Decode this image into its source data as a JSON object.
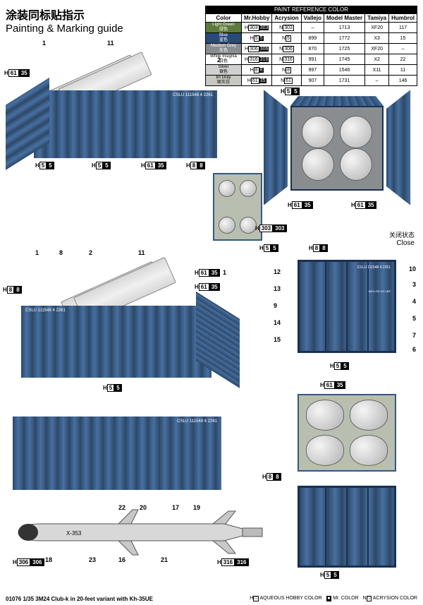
{
  "title_cn": "涂装同标贴指示",
  "title_en": "Painting & Marking guide",
  "paint_table": {
    "header": "PAINT  REFERENCE COLOR",
    "columns": [
      "Color",
      "Mr.Hobby",
      "Acrysion",
      "Vallejo",
      "Model Master",
      "Tamiya",
      "Humbrol"
    ],
    "rows": [
      {
        "name_en": "Light Green",
        "name_cn": "绿色",
        "bg": "#5e7a3c",
        "txt": "#fff",
        "h": "303",
        "hc": "303",
        "n": "303",
        "v": "–",
        "mm": "1713",
        "t": "XF20",
        "hb": "117"
      },
      {
        "name_en": "Blue",
        "name_cn": "蓝色",
        "bg": "#2a4a7a",
        "txt": "#fff",
        "h": "5",
        "hc": "5",
        "n": "5",
        "v": "899",
        "mm": "1772",
        "t": "X3",
        "hb": "15"
      },
      {
        "name_en": "Medium Grey",
        "name_cn": "灰色",
        "bg": "#8a8d8f",
        "txt": "#fff",
        "h": "306",
        "hc": "306",
        "n": "306",
        "v": "870",
        "mm": "1725",
        "t": "XF20",
        "hb": "–"
      },
      {
        "name_en": "White Insignia",
        "name_cn": "白色",
        "bg": "#ffffff",
        "txt": "#000",
        "h": "316",
        "hc": "316",
        "n": "316",
        "v": "991",
        "mm": "1745",
        "t": "X2",
        "hb": "22"
      },
      {
        "name_en": "Silver",
        "name_cn": "银色",
        "bg": "#d0d0d0",
        "txt": "#000",
        "h": "8",
        "hc": "8",
        "n": "8",
        "v": "997",
        "mm": "1546",
        "t": "X11",
        "hb": "11"
      },
      {
        "name_en": "tin Gray",
        "name_cn": "联灰白",
        "bg": "#c8c8c0",
        "txt": "#000",
        "h": "61",
        "hc": "35",
        "n": "61",
        "v": "907",
        "mm": "1731",
        "t": "–",
        "hb": "146"
      }
    ]
  },
  "codes": {
    "h61_35": {
      "prefix": "H",
      "p": "61",
      "b": "35"
    },
    "h5_5": {
      "prefix": "H",
      "p": "5",
      "b": "5"
    },
    "h8_8": {
      "prefix": "H",
      "p": "8",
      "b": "8"
    },
    "h303_303": {
      "prefix": "H",
      "p": "303",
      "b": "303"
    },
    "h306_306": {
      "prefix": "H",
      "p": "306",
      "b": "306"
    },
    "h316_316": {
      "prefix": "H",
      "p": "316",
      "b": "316"
    }
  },
  "close_cn": "关闭状态",
  "close_en": "Close",
  "container_marking": "CSLU 111548 4  2261",
  "container_marking2": "MAX.GR       KG   LBS",
  "missile_code": "X-353",
  "callouts_v1": [
    "1",
    "8",
    "11",
    "2"
  ],
  "numbers_close": [
    "12",
    "13",
    "9",
    "14",
    "15",
    "10",
    "3",
    "4",
    "5",
    "7",
    "6"
  ],
  "numbers_missile": [
    "18",
    "23",
    "16",
    "22",
    "20",
    "21",
    "17",
    "19"
  ],
  "product": "01076 1/35  3M24 Club-k in 20-feet variant with Kh-35UE",
  "legend": {
    "aqueous": "AQUEOUS HOBBY COLOR",
    "mr": "Mr. COLOR",
    "acr": "ACRYSION COLOR"
  }
}
